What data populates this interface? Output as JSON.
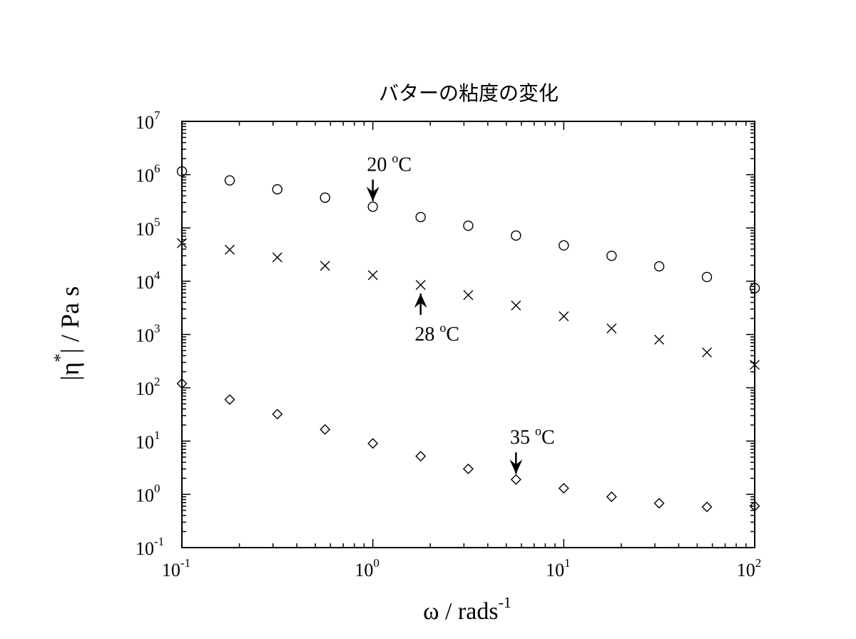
{
  "chart_data": {
    "type": "scatter",
    "title": "バターの粘度の変化",
    "xlabel": {
      "base": "ω / rads",
      "sup": "-1"
    },
    "ylabel": {
      "pre": "|η",
      "sup": "*",
      "post": "| / Pa s"
    },
    "x_scale": "log",
    "y_scale": "log",
    "xlim": [
      0.1,
      100
    ],
    "ylim": [
      0.1,
      10000000
    ],
    "x_ticks": [
      {
        "base": "10",
        "exp": "-1",
        "value": 0.1
      },
      {
        "base": "10",
        "exp": "0",
        "value": 1
      },
      {
        "base": "10",
        "exp": "1",
        "value": 10
      },
      {
        "base": "10",
        "exp": "2",
        "value": 100
      }
    ],
    "y_ticks": [
      {
        "base": "10",
        "exp": "-1",
        "value": 0.1
      },
      {
        "base": "10",
        "exp": "0",
        "value": 1
      },
      {
        "base": "10",
        "exp": "1",
        "value": 10
      },
      {
        "base": "10",
        "exp": "2",
        "value": 100
      },
      {
        "base": "10",
        "exp": "3",
        "value": 1000
      },
      {
        "base": "10",
        "exp": "4",
        "value": 10000
      },
      {
        "base": "10",
        "exp": "5",
        "value": 100000
      },
      {
        "base": "10",
        "exp": "6",
        "value": 1000000
      },
      {
        "base": "10",
        "exp": "7",
        "value": 10000000
      }
    ],
    "grid": false,
    "series": [
      {
        "marker": "circle",
        "x": [
          0.1,
          0.178,
          0.316,
          0.562,
          1,
          1.78,
          3.16,
          5.62,
          10,
          17.8,
          31.6,
          56.2,
          100
        ],
        "y": [
          1150000,
          780000,
          530000,
          370000,
          250000,
          160000,
          110000,
          72000,
          47000,
          30000,
          19000,
          12000,
          7400
        ]
      },
      {
        "marker": "cross",
        "x": [
          0.1,
          0.178,
          0.316,
          0.562,
          1,
          1.78,
          3.16,
          5.62,
          10,
          17.8,
          31.6,
          56.2,
          100
        ],
        "y": [
          52000,
          39000,
          28000,
          19500,
          13000,
          8500,
          5500,
          3500,
          2200,
          1300,
          800,
          460,
          270
        ]
      },
      {
        "marker": "diamond",
        "x": [
          0.1,
          0.178,
          0.316,
          0.562,
          1,
          1.78,
          3.16,
          5.62,
          10,
          17.8,
          31.6,
          56.2,
          100
        ],
        "y": [
          120,
          60,
          32,
          16.5,
          9,
          5.2,
          3.0,
          1.9,
          1.3,
          0.9,
          0.68,
          0.58,
          0.6
        ]
      }
    ],
    "annotations": [
      {
        "text": "20 ",
        "sup": "o",
        "unit": "C",
        "arrow_to_x": 1,
        "arrow_to_y": 250000,
        "direction": "down"
      },
      {
        "text": "28 ",
        "sup": "o",
        "unit": "C",
        "arrow_to_x": 1.78,
        "arrow_to_y": 8500,
        "direction": "up"
      },
      {
        "text": "35 ",
        "sup": "o",
        "unit": "C",
        "arrow_to_x": 5.62,
        "arrow_to_y": 1.9,
        "direction": "down"
      }
    ]
  }
}
